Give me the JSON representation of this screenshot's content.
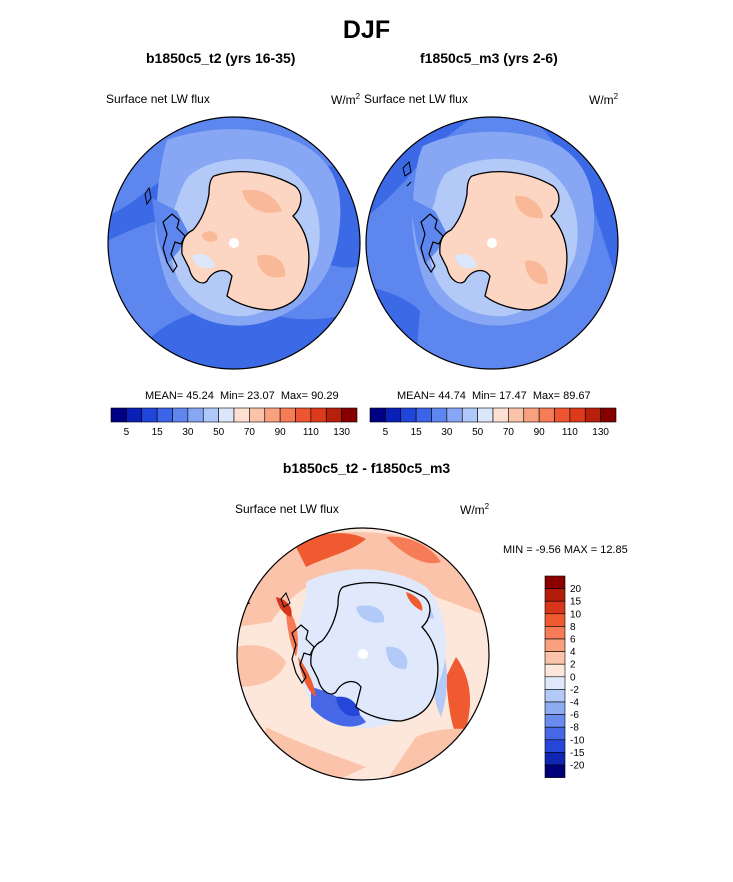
{
  "figure": {
    "title": "DJF",
    "panels": [
      {
        "title": "b1850c5_t2 (yrs 16-35)",
        "left_label": "Surface net LW flux",
        "units": "W/m",
        "units_exp": "2",
        "stats": {
          "mean_label": "MEAN=",
          "mean": "45.24",
          "min_label": "Min=",
          "min": "23.07",
          "max_label": "Max=",
          "max": "90.29"
        }
      },
      {
        "title": "f1850c5_m3 (yrs 2-6)",
        "left_label": "Surface net LW flux",
        "units": "W/m",
        "units_exp": "2",
        "stats": {
          "mean_label": "MEAN=",
          "mean": "44.74",
          "min_label": "Min=",
          "min": "17.47",
          "max_label": "Max=",
          "max": "89.67"
        }
      }
    ],
    "diff": {
      "title": "b1850c5_t2 - f1850c5_m3",
      "left_label": "Surface net LW flux",
      "units": "W/m",
      "units_exp": "2",
      "minmax": "MIN =  -9.56 MAX =  12.85"
    }
  },
  "chart_data": [
    {
      "type": "heatmap",
      "projection": "south-polar-stereographic",
      "title": "b1850c5_t2 (yrs 16-35)",
      "variable": "Surface net LW flux",
      "units": "W/m2",
      "mean": 45.24,
      "min": 23.07,
      "max": 90.29,
      "colorbar_ticks": [
        "5",
        "15",
        "30",
        "50",
        "70",
        "90",
        "110",
        "130"
      ],
      "colorbar_colors": [
        "#000082",
        "#0a1fb5",
        "#1f45dc",
        "#3c64e8",
        "#5f86ee",
        "#87a7f4",
        "#b0c7f9",
        "#dce7fc",
        "#fde0d2",
        "#fbc4aa",
        "#f9a07e",
        "#f57c56",
        "#ee5632",
        "#dc3a1a",
        "#b9200c",
        "#870000"
      ]
    },
    {
      "type": "heatmap",
      "projection": "south-polar-stereographic",
      "title": "f1850c5_m3 (yrs 2-6)",
      "variable": "Surface net LW flux",
      "units": "W/m2",
      "mean": 44.74,
      "min": 17.47,
      "max": 89.67,
      "colorbar_ticks": [
        "5",
        "15",
        "30",
        "50",
        "70",
        "90",
        "110",
        "130"
      ],
      "colorbar_colors": [
        "#000082",
        "#0a1fb5",
        "#1f45dc",
        "#3c64e8",
        "#5f86ee",
        "#87a7f4",
        "#b0c7f9",
        "#dce7fc",
        "#fde0d2",
        "#fbc4aa",
        "#f9a07e",
        "#f57c56",
        "#ee5632",
        "#dc3a1a",
        "#b9200c",
        "#870000"
      ]
    },
    {
      "type": "heatmap",
      "projection": "south-polar-stereographic",
      "title": "b1850c5_t2 - f1850c5_m3",
      "variable": "Surface net LW flux",
      "units": "W/m2",
      "min": -9.56,
      "max": 12.85,
      "colorbar_ticks": [
        "20",
        "15",
        "10",
        "8",
        "6",
        "4",
        "2",
        "0",
        "-2",
        "-4",
        "-6",
        "-8",
        "-10",
        "-15",
        "-20"
      ],
      "colorbar_colors": [
        "#8a0000",
        "#b41c0a",
        "#d8361a",
        "#ef5a30",
        "#f57c56",
        "#f9a07e",
        "#fbc4aa",
        "#fde6da",
        "#dfe9fb",
        "#b3c9f7",
        "#8eacf2",
        "#6a8cee",
        "#4668e6",
        "#2546d8",
        "#0f26b4",
        "#000078"
      ]
    }
  ]
}
